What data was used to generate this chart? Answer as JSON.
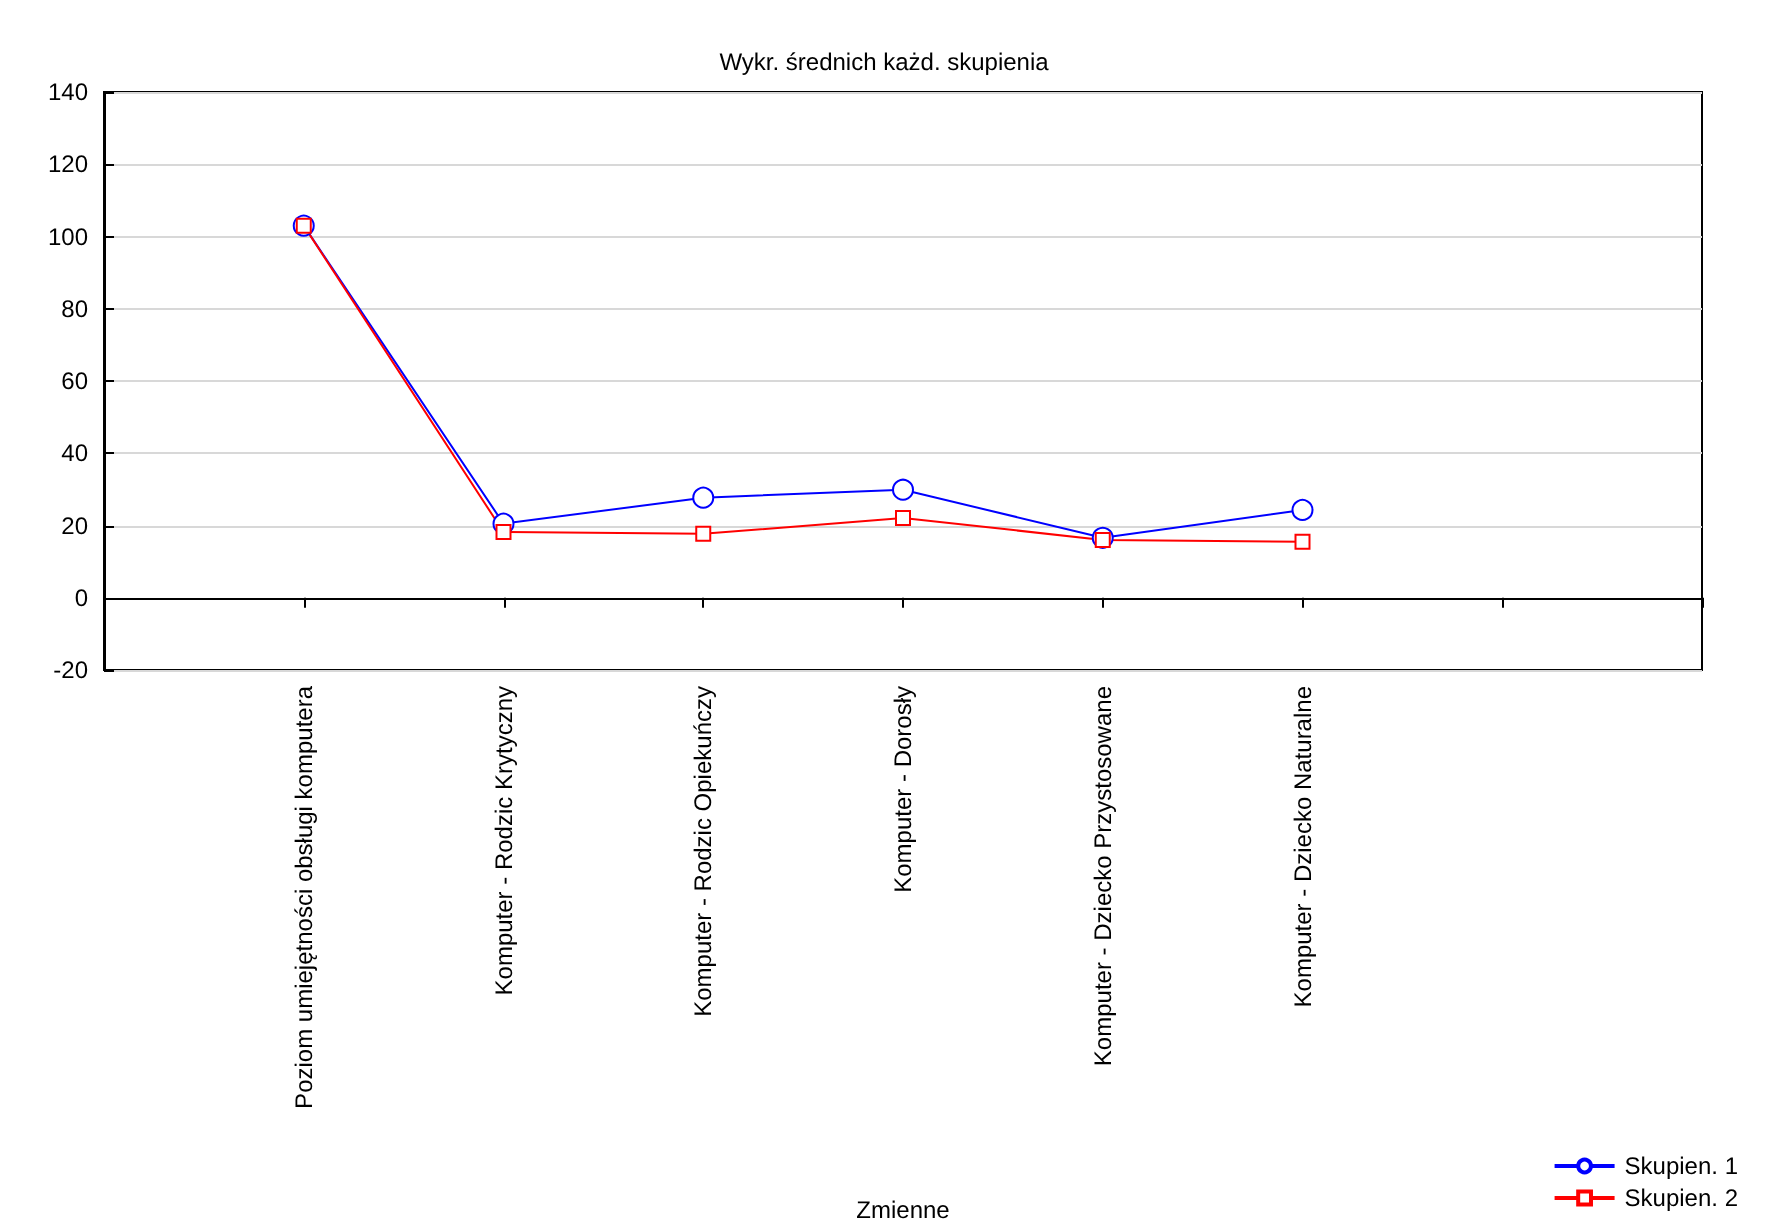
{
  "chart_data": {
    "type": "line",
    "title": "Wykr. średnich każd. skupienia",
    "xlabel": "Zmienne",
    "categories": [
      "Poziom umiejętności obsługi komputera",
      "Komputer - Rodzic Krytyczny",
      "Komputer - Rodzic Opiekuńczy",
      "Komputer - Dorosły",
      "Komputer - Dziecko Przystosowane",
      "Komputer - Dziecko Naturalne"
    ],
    "series": [
      {
        "name": "Skupien. 1",
        "color": "#0000ff",
        "marker": "circle",
        "values": [
          103,
          20.5,
          27.7,
          29.9,
          16.6,
          24.3
        ]
      },
      {
        "name": "Skupien. 2",
        "color": "#ff0000",
        "marker": "square",
        "values": [
          103,
          18.2,
          17.7,
          22.1,
          16,
          15.5
        ]
      }
    ],
    "ylim": [
      -20,
      140
    ],
    "yticks": [
      -20,
      0,
      20,
      40,
      60,
      80,
      100,
      120,
      140
    ],
    "grid": "y",
    "legend": "bottom right",
    "line_style": "solid"
  }
}
